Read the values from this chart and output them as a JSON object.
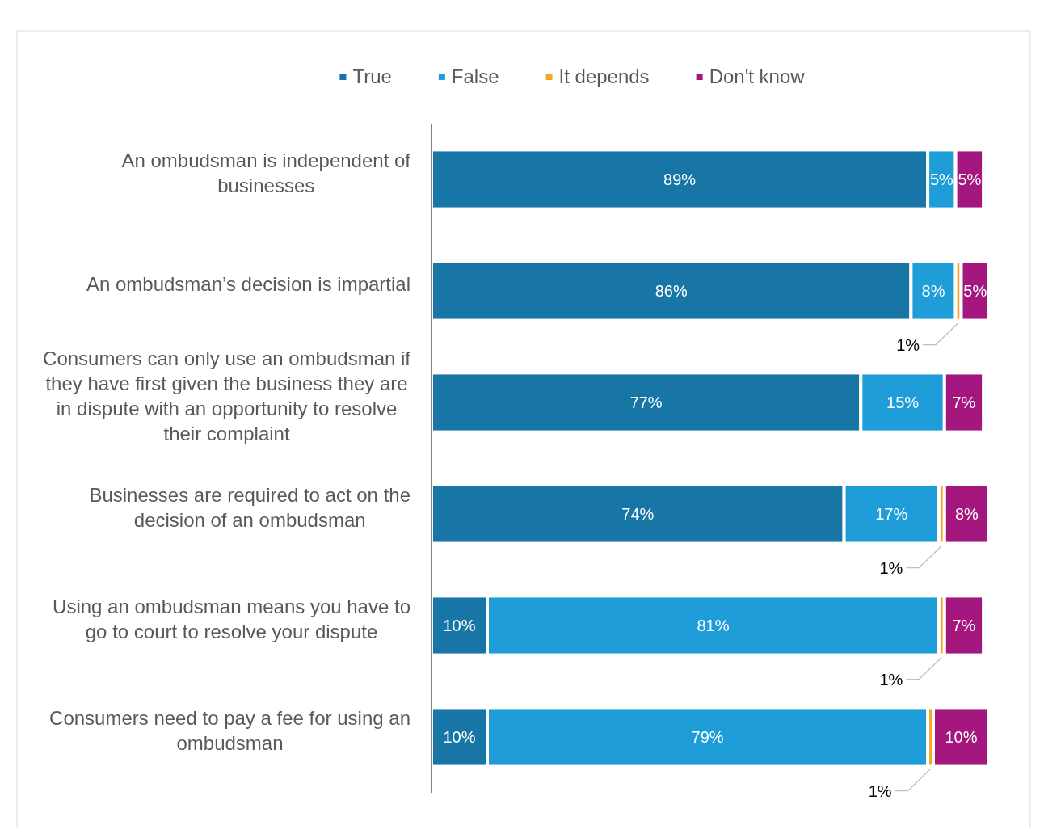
{
  "chart_data": {
    "type": "bar",
    "orientation": "horizontal",
    "stacked": true,
    "categories": [
      "An ombudsman is independent of businesses",
      "An ombudsman’s decision is impartial",
      "Consumers can only use an ombudsman if they have first given the business they are in dispute with an opportunity to resolve their complaint",
      "Businesses are required to act on the decision of an ombudsman",
      "Using an ombudsman means you have to go to court to resolve your dispute",
      "Consumers need to pay a fee for using an ombudsman"
    ],
    "series": [
      {
        "name": "True",
        "color": "#1776a5",
        "values": [
          89,
          86,
          77,
          74,
          10,
          10
        ],
        "value_labels": [
          "89%",
          "86%",
          "77%",
          "74%",
          "10%",
          "10%"
        ]
      },
      {
        "name": "False",
        "color": "#1e9dd9",
        "values": [
          5,
          8,
          15,
          17,
          81,
          79
        ],
        "value_labels": [
          "5%",
          "8%",
          "15%",
          "17%",
          "81%",
          "79%"
        ]
      },
      {
        "name": "It depends",
        "color": "#f5a623",
        "values": [
          null,
          1,
          null,
          1,
          1,
          1
        ],
        "value_labels": [
          null,
          "1%",
          null,
          "1%",
          "1%",
          "1%"
        ]
      },
      {
        "name": "Don't know",
        "color": "#a3177f",
        "values": [
          5,
          5,
          7,
          8,
          7,
          10
        ],
        "value_labels": [
          "5%",
          "5%",
          "7%",
          "8%",
          "7%",
          "10%"
        ]
      }
    ],
    "tick_labels": "y",
    "legend": "top"
  }
}
